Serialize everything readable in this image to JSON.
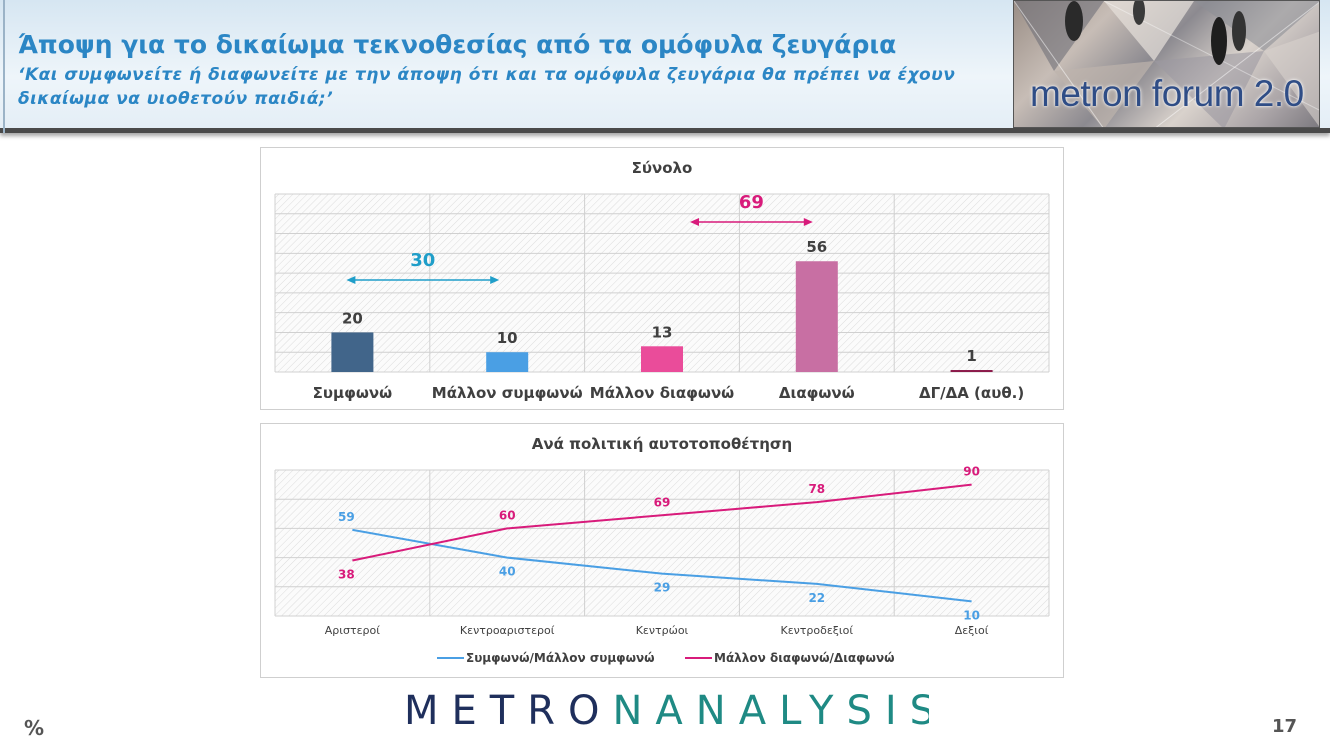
{
  "header": {
    "title": "Άποψη για το δικαίωμα τεκνοθεσίας από τα ομόφυλα ζευγάρια",
    "subtitle": "‘Και συμφωνείτε ή διαφωνείτε με την άποψη ότι και τα ομόφυλα ζευγάρια θα πρέπει να έχουν δικαίωμα να υιοθετούν παιδιά;’",
    "forum_logo": "metron forum 2.0"
  },
  "footer": {
    "percent_sign": "%",
    "logo": "METRONANALYSIS",
    "page_number": "17"
  },
  "colors": {
    "title": "#2b86c5",
    "bar_agree": "#41658a",
    "bar_mostly_agree": "#4a9fe4",
    "bar_mostly_disagree": "#ea4c9a",
    "bar_disagree": "#c86fa3",
    "bar_dk": "#8b1a4a",
    "agree_line": "#4a9fe4",
    "disagree_line": "#d81b7b",
    "agree_bracket": "#1f9ec9",
    "disagree_bracket": "#d81b7b"
  },
  "chart_data": [
    {
      "type": "bar",
      "title": "Σύνολο",
      "categories": [
        "Συμφωνώ",
        "Μάλλον συμφωνώ",
        "Μάλλον διαφωνώ",
        "Διαφωνώ",
        "ΔΓ/ΔΑ (αυθ.)"
      ],
      "values": [
        20,
        10,
        13,
        56,
        1
      ],
      "ylim": [
        0,
        90
      ],
      "grid": true,
      "annotations": [
        {
          "label": "30",
          "spans": [
            "Συμφωνώ",
            "Μάλλον συμφωνώ"
          ]
        },
        {
          "label": "69",
          "spans": [
            "Μάλλον διαφωνώ",
            "Διαφωνώ"
          ]
        }
      ]
    },
    {
      "type": "line",
      "title": "Ανά πολιτική αυτοτοποθέτηση",
      "categories": [
        "Αριστεροί",
        "Κεντροαριστεροί",
        "Κεντρώοι",
        "Κεντροδεξιοί",
        "Δεξιοί"
      ],
      "ylim": [
        0,
        100
      ],
      "grid": true,
      "legend": "bottom",
      "series": [
        {
          "name": "Συμφωνώ/Μάλλον συμφωνώ",
          "values": [
            59,
            40,
            29,
            22,
            10
          ]
        },
        {
          "name": "Μάλλον διαφωνώ/Διαφωνώ",
          "values": [
            38,
            60,
            69,
            78,
            90
          ]
        }
      ]
    }
  ]
}
